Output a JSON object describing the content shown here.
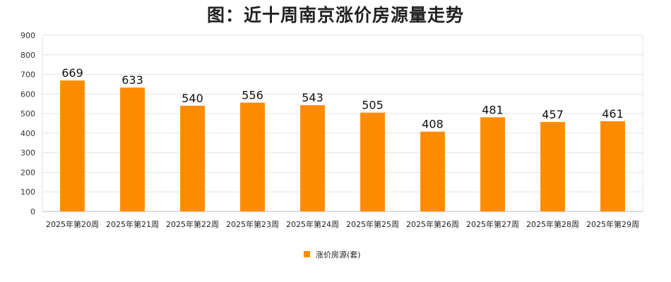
{
  "chart_data": {
    "type": "bar",
    "title": "图：近十周南京涨价房源量走势",
    "categories": [
      "2025年第20周",
      "2025年第21周",
      "2025年第22周",
      "2025年第23周",
      "2025年第24周",
      "2025年第25周",
      "2025年第26周",
      "2025年第27周",
      "2025年第28周",
      "2025年第29周"
    ],
    "series": [
      {
        "name": "涨价房源(套)",
        "values": [
          669,
          633,
          540,
          556,
          543,
          505,
          408,
          481,
          457,
          461
        ]
      }
    ],
    "yticks": [
      "0",
      "100",
      "200",
      "300",
      "400",
      "500",
      "600",
      "700",
      "800",
      "900"
    ],
    "ylim": [
      0,
      900
    ],
    "grid": true,
    "legend_position": "bottom",
    "colors": {
      "bar": "#FF8C00",
      "grid": "#E3E3E3",
      "axis": "#BBBBBB"
    }
  }
}
